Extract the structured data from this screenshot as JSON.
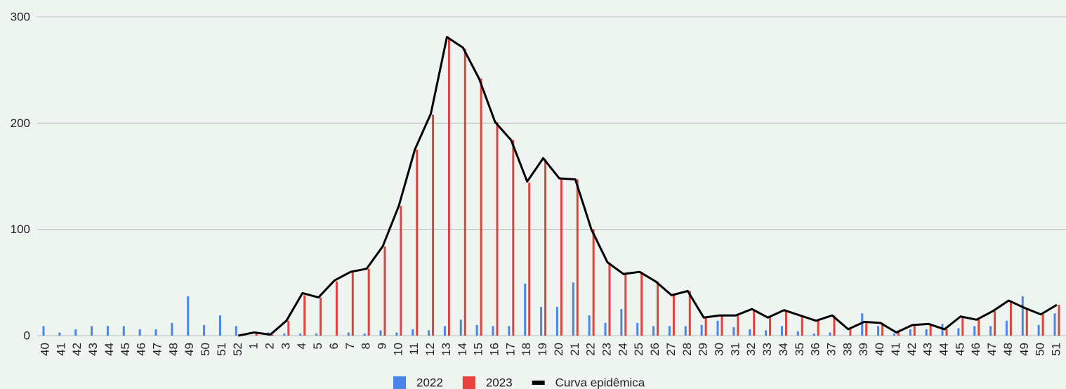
{
  "chart_data": {
    "type": "bar",
    "categories": [
      "40",
      "41",
      "42",
      "43",
      "44",
      "45",
      "46",
      "47",
      "48",
      "49",
      "50",
      "51",
      "52",
      "1",
      "2",
      "3",
      "4",
      "5",
      "6",
      "7",
      "8",
      "9",
      "10",
      "11",
      "12",
      "13",
      "14",
      "15",
      "16",
      "17",
      "18",
      "19",
      "20",
      "21",
      "22",
      "23",
      "24",
      "25",
      "26",
      "27",
      "28",
      "29",
      "30",
      "31",
      "32",
      "33",
      "34",
      "35",
      "36",
      "37",
      "38",
      "39",
      "40",
      "41",
      "42",
      "43",
      "44",
      "45",
      "46",
      "47",
      "48",
      "49",
      "50",
      "51"
    ],
    "series": [
      {
        "name": "2022",
        "color": "#4a86e8",
        "values": [
          9,
          3,
          6,
          9,
          9,
          9,
          6,
          6,
          12,
          37,
          10,
          19,
          9,
          0,
          3,
          2,
          2,
          2,
          0,
          3,
          2,
          5,
          3,
          6,
          5,
          9,
          15,
          10,
          9,
          9,
          49,
          27,
          27,
          50,
          19,
          12,
          25,
          12,
          9,
          9,
          9,
          10,
          14,
          8,
          6,
          5,
          9,
          4,
          2,
          3,
          0,
          21,
          9,
          2,
          6,
          6,
          11,
          7,
          9,
          9,
          14,
          37,
          10,
          21
        ]
      },
      {
        "name": "2023",
        "color": "#e6413a",
        "values": [
          null,
          null,
          null,
          null,
          null,
          null,
          null,
          null,
          null,
          null,
          null,
          null,
          null,
          3,
          1,
          14,
          38,
          36,
          51,
          60,
          63,
          84,
          122,
          175,
          208,
          280,
          270,
          242,
          201,
          184,
          144,
          166,
          147,
          147,
          100,
          69,
          58,
          60,
          51,
          38,
          42,
          17,
          19,
          19,
          25,
          17,
          24,
          19,
          14,
          19,
          6,
          13,
          12,
          3,
          10,
          11,
          6,
          18,
          15,
          23,
          33,
          26,
          20,
          29
        ]
      },
      {
        "name": "Curva epidêmica",
        "type": "line",
        "color": "#000000",
        "values": [
          null,
          null,
          null,
          null,
          null,
          null,
          null,
          null,
          null,
          null,
          null,
          null,
          0,
          3,
          1,
          14,
          40,
          36,
          52,
          60,
          63,
          84,
          122,
          175,
          209,
          281,
          271,
          242,
          201,
          184,
          145,
          167,
          148,
          147,
          100,
          69,
          58,
          60,
          51,
          38,
          42,
          17,
          19,
          19,
          25,
          17,
          24,
          19,
          14,
          19,
          6,
          13,
          12,
          3,
          10,
          11,
          6,
          18,
          15,
          23,
          33,
          26,
          20,
          29
        ]
      }
    ],
    "ylim": [
      0,
      300
    ],
    "yticks": [
      0,
      100,
      200,
      300
    ],
    "grid": true,
    "legend": "bottom"
  }
}
